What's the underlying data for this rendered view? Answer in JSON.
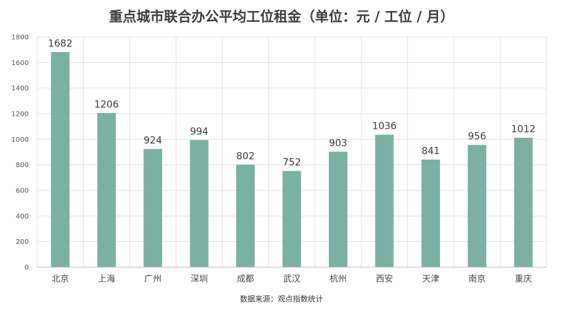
{
  "chart_data": {
    "type": "bar",
    "title": "重点城市联合办公平均工位租金（单位：元 / 工位 / 月）",
    "categories": [
      "北京",
      "上海",
      "广州",
      "深圳",
      "成都",
      "武汉",
      "杭州",
      "西安",
      "天津",
      "南京",
      "重庆"
    ],
    "values": [
      1682,
      1206,
      924,
      994,
      802,
      752,
      903,
      1036,
      841,
      956,
      1012
    ],
    "ylim": [
      0,
      1800
    ],
    "yticks": [
      0,
      200,
      400,
      600,
      800,
      1000,
      1200,
      1400,
      1600,
      1800
    ],
    "grid": true,
    "bar_color": "#7ab1a2",
    "source": "数据来源：观点指数统计"
  }
}
